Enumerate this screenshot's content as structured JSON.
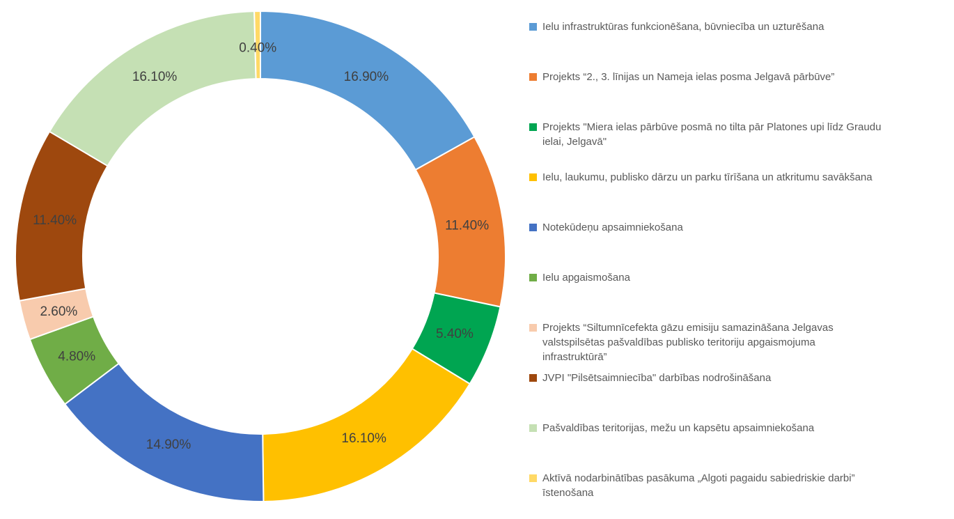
{
  "chart_data": {
    "type": "pie",
    "donut": true,
    "title": "",
    "legend_position": "right",
    "donut_hole_ratio": 0.72,
    "start_angle_deg": 0,
    "label_color": "#404040",
    "legend_text_color": "#595959",
    "slices": [
      {
        "name": "Ielu infrastruktūras funkcionēšana, būvniecība un uzturēšana",
        "value": 16.9,
        "label": "16.90%",
        "color": "#5B9BD5"
      },
      {
        "name": "Projekts “2., 3. līnijas un Nameja ielas posma Jelgavā pārbūve”",
        "value": 11.4,
        "label": "11.40%",
        "color": "#ED7D31"
      },
      {
        "name": "Projekts \"Miera ielas pārbūve posmā no tilta pār Platones upi līdz Graudu\nielai, Jelgavā\"",
        "value": 5.4,
        "label": "5.40%",
        "color": "#00A551"
      },
      {
        "name": "Ielu, laukumu, publisko dārzu un parku tīrīšana un atkritumu savākšana",
        "value": 16.1,
        "label": "16.10%",
        "color": "#FFC000"
      },
      {
        "name": "Notekūdeņu apsaimniekošana",
        "value": 14.9,
        "label": "14.90%",
        "color": "#4472C4"
      },
      {
        "name": "Ielu apgaismošana",
        "value": 4.8,
        "label": "4.80%",
        "color": "#70AD47"
      },
      {
        "name": "Projekts “Siltumnīcefekta gāzu emisiju samazināšana Jelgavas\nvalstspilsētas pašvaldības publisko teritoriju apgaismojuma\ninfrastruktūrā”",
        "value": 2.6,
        "label": "2.60%",
        "color": "#F8CBAD"
      },
      {
        "name": "JVPI \"Pilsētsaimniecība\" darbības nodrošināšana",
        "value": 11.4,
        "label": "11.40%",
        "color": "#9E480E"
      },
      {
        "name": "Pašvaldības teritorijas, mežu un kapsētu apsaimniekošana",
        "value": 16.1,
        "label": "16.10%",
        "color": "#C5E0B4"
      },
      {
        "name": "Aktīvā nodarbinātības pasākuma „Algoti pagaidu sabiedriskie darbi”\nīstenošana",
        "value": 0.4,
        "label": "0.40%",
        "color": "#FFD966"
      }
    ]
  }
}
